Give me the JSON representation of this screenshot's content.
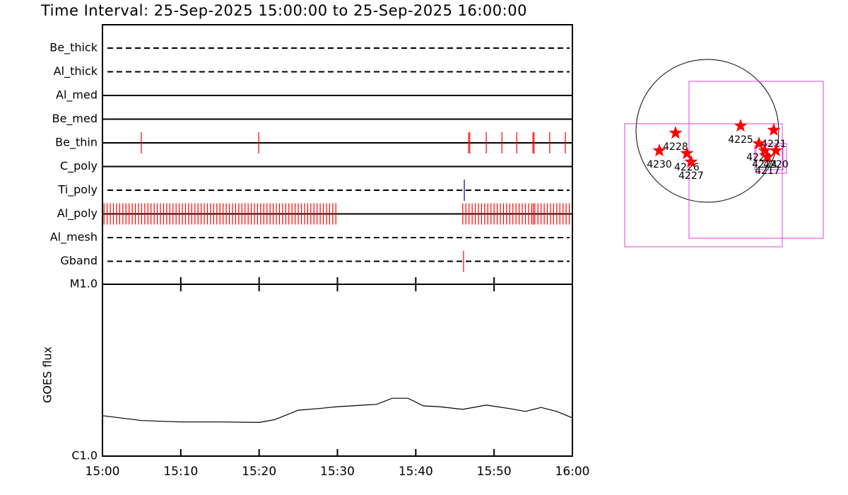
{
  "title": "Time Interval: 25-Sep-2025 15:00:00 to 25-Sep-2025 16:00:00",
  "chart_data": [
    {
      "type": "timeline",
      "xlim": [
        0,
        60
      ],
      "rows": [
        {
          "label": "Be_thick",
          "style": "dashed",
          "times": []
        },
        {
          "label": "Al_thick",
          "style": "dashed",
          "times": []
        },
        {
          "label": "Al_med",
          "style": "solid",
          "times": []
        },
        {
          "label": "Be_med",
          "style": "solid",
          "times": []
        },
        {
          "label": "Be_thin",
          "style": "solid",
          "color": "#ff0000",
          "times": [
            4.96,
            19.95,
            46.75,
            46.9,
            49.0,
            51.0,
            52.9,
            54.96,
            55.1,
            57.1,
            59.1
          ]
        },
        {
          "label": "C_poly",
          "style": "solid",
          "times": []
        },
        {
          "label": "Ti_poly",
          "style": "dashed",
          "color": "#000080",
          "times": [
            46.2
          ]
        },
        {
          "label": "Al_poly",
          "style": "solid",
          "color": "#ff0000",
          "times": [
            0.2,
            0.6,
            1.0,
            1.4,
            1.8,
            2.2,
            2.6,
            3.0,
            3.4,
            3.8,
            4.2,
            4.6,
            5.0,
            5.4,
            5.8,
            6.2,
            6.6,
            7.0,
            7.4,
            7.8,
            8.2,
            8.6,
            9.0,
            9.4,
            9.8,
            10.2,
            10.6,
            11.0,
            11.4,
            11.8,
            12.2,
            12.6,
            13.0,
            13.4,
            13.8,
            14.2,
            14.6,
            15.0,
            15.4,
            15.8,
            16.2,
            16.6,
            17.0,
            17.4,
            17.8,
            18.2,
            18.6,
            19.0,
            19.4,
            19.8,
            20.2,
            20.6,
            21.0,
            21.4,
            21.8,
            22.2,
            22.6,
            23.0,
            23.4,
            23.8,
            24.2,
            24.6,
            25.0,
            25.4,
            25.8,
            26.2,
            26.6,
            27.0,
            27.4,
            27.8,
            28.2,
            28.6,
            29.0,
            29.4,
            29.8,
            46.0,
            46.4,
            46.8,
            47.2,
            47.6,
            48.0,
            48.4,
            48.8,
            49.2,
            49.6,
            50.0,
            50.4,
            50.8,
            51.2,
            51.6,
            52.0,
            52.4,
            52.8,
            53.2,
            53.6,
            54.0,
            54.4,
            54.8,
            55.0,
            55.2,
            55.6,
            56.0,
            56.4,
            56.8,
            57.2,
            57.6,
            58.0,
            58.4,
            58.8,
            59.2,
            59.6
          ]
        },
        {
          "label": "Al_mesh",
          "style": "dashed",
          "times": []
        },
        {
          "label": "Gband",
          "style": "dashed",
          "color": "#ff0000",
          "times": [
            46.1
          ]
        }
      ]
    },
    {
      "type": "line",
      "ylabel": "GOES flux",
      "log": true,
      "color": "#000000",
      "x": [
        0,
        5,
        10,
        15,
        20,
        22,
        25,
        28,
        30,
        35,
        37,
        39,
        41,
        43,
        46,
        49,
        52,
        54,
        56,
        58,
        60
      ],
      "values": [
        1.72,
        1.61,
        1.58,
        1.58,
        1.57,
        1.63,
        1.85,
        1.9,
        1.94,
        2.0,
        2.17,
        2.17,
        1.96,
        1.94,
        1.87,
        1.98,
        1.89,
        1.82,
        1.92,
        1.82,
        1.67
      ],
      "xlim": [
        0,
        60
      ],
      "xticks": [
        {
          "value": 0,
          "label": "15:00"
        },
        {
          "value": 10,
          "label": "15:10"
        },
        {
          "value": 20,
          "label": "15:20"
        },
        {
          "value": 30,
          "label": "15:30"
        },
        {
          "value": 40,
          "label": "15:40"
        },
        {
          "value": 50,
          "label": "15:50"
        },
        {
          "value": 60,
          "label": "16:00"
        }
      ],
      "ylim": [
        1,
        10
      ],
      "yticks": [
        {
          "value": 1,
          "label": "C1.0"
        },
        {
          "value": 10,
          "label": "M1.0"
        }
      ]
    },
    {
      "type": "scatter",
      "color": "#ff0000",
      "points": [
        {
          "label": "4228",
          "x": -428,
          "y": -29
        },
        {
          "label": "4230",
          "x": -646,
          "y": -266
        },
        {
          "label": "4226",
          "x": -276,
          "y": -304
        },
        {
          "label": "4227",
          "x": -219,
          "y": -418
        },
        {
          "label": "4225",
          "x": 447,
          "y": 67
        },
        {
          "label": "4221",
          "x": 893,
          "y": 10
        },
        {
          "label": "4222",
          "x": 694,
          "y": -171
        },
        {
          "label": "4224",
          "x": 770,
          "y": -266
        },
        {
          "label": "4217",
          "x": 808,
          "y": -352
        },
        {
          "label": "4220",
          "x": 922,
          "y": -266
        }
      ]
    }
  ]
}
